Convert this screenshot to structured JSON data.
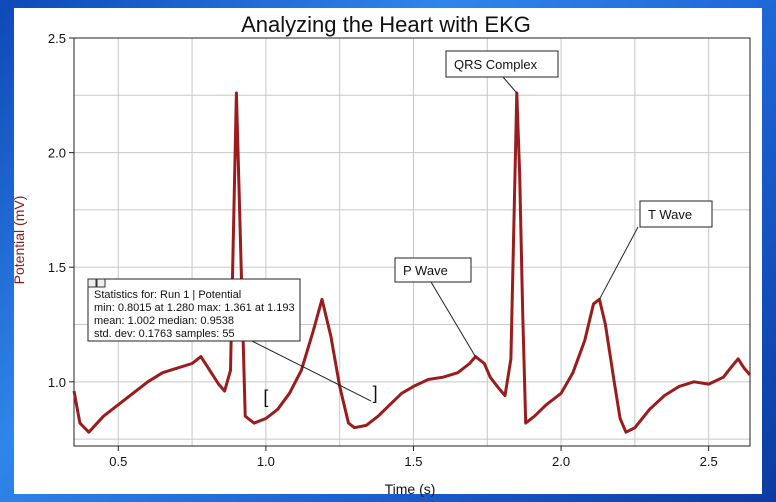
{
  "chart_data": {
    "type": "line",
    "title": "Analyzing the Heart with EKG",
    "xlabel": "Time (s)",
    "ylabel": "Potential (mV)",
    "xlim": [
      0.35,
      2.64
    ],
    "ylim": [
      0.72,
      2.5
    ],
    "x_ticks": [
      "0.5",
      "1.0",
      "1.5",
      "2.0",
      "2.5"
    ],
    "y_ticks": [
      "1.0",
      "1.5",
      "2.0",
      "2.5"
    ],
    "grid": true,
    "line_color": "#9b1c1c",
    "series": [
      {
        "points": [
          [
            0.35,
            0.96
          ],
          [
            0.37,
            0.82
          ],
          [
            0.4,
            0.78
          ],
          [
            0.45,
            0.85
          ],
          [
            0.5,
            0.9
          ],
          [
            0.55,
            0.95
          ],
          [
            0.6,
            1.0
          ],
          [
            0.65,
            1.04
          ],
          [
            0.7,
            1.06
          ],
          [
            0.75,
            1.08
          ],
          [
            0.78,
            1.11
          ],
          [
            0.81,
            1.05
          ],
          [
            0.84,
            0.99
          ],
          [
            0.86,
            0.96
          ],
          [
            0.88,
            1.05
          ],
          [
            0.9,
            2.26
          ],
          [
            0.91,
            1.8
          ],
          [
            0.93,
            0.85
          ],
          [
            0.96,
            0.82
          ],
          [
            1.0,
            0.84
          ],
          [
            1.04,
            0.88
          ],
          [
            1.08,
            0.95
          ],
          [
            1.12,
            1.05
          ],
          [
            1.16,
            1.22
          ],
          [
            1.19,
            1.36
          ],
          [
            1.22,
            1.2
          ],
          [
            1.25,
            0.98
          ],
          [
            1.28,
            0.82
          ],
          [
            1.3,
            0.8
          ],
          [
            1.34,
            0.81
          ],
          [
            1.38,
            0.85
          ],
          [
            1.42,
            0.9
          ],
          [
            1.46,
            0.95
          ],
          [
            1.5,
            0.98
          ],
          [
            1.55,
            1.01
          ],
          [
            1.6,
            1.02
          ],
          [
            1.65,
            1.04
          ],
          [
            1.69,
            1.08
          ],
          [
            1.71,
            1.11
          ],
          [
            1.74,
            1.08
          ],
          [
            1.76,
            1.02
          ],
          [
            1.79,
            0.97
          ],
          [
            1.81,
            0.94
          ],
          [
            1.83,
            1.1
          ],
          [
            1.85,
            2.26
          ],
          [
            1.86,
            1.9
          ],
          [
            1.87,
            1.3
          ],
          [
            1.88,
            0.82
          ],
          [
            1.91,
            0.85
          ],
          [
            1.95,
            0.9
          ],
          [
            2.0,
            0.95
          ],
          [
            2.04,
            1.04
          ],
          [
            2.08,
            1.18
          ],
          [
            2.11,
            1.34
          ],
          [
            2.13,
            1.36
          ],
          [
            2.15,
            1.25
          ],
          [
            2.18,
            1.0
          ],
          [
            2.2,
            0.84
          ],
          [
            2.22,
            0.78
          ],
          [
            2.25,
            0.8
          ],
          [
            2.3,
            0.88
          ],
          [
            2.35,
            0.94
          ],
          [
            2.4,
            0.98
          ],
          [
            2.45,
            1.0
          ],
          [
            2.5,
            0.99
          ],
          [
            2.55,
            1.02
          ],
          [
            2.58,
            1.07
          ],
          [
            2.6,
            1.1
          ],
          [
            2.62,
            1.06
          ],
          [
            2.64,
            1.03
          ]
        ]
      }
    ],
    "annotations": [
      {
        "text": "QRS Complex",
        "target": [
          1.85,
          2.26
        ]
      },
      {
        "text": "P Wave",
        "target": [
          1.71,
          1.11
        ]
      },
      {
        "text": "T Wave",
        "target": [
          2.13,
          1.36
        ]
      }
    ],
    "selection_brackets": {
      "start": "[",
      "end": "]",
      "x_start": 1.0,
      "x_end": 1.37,
      "y": 0.89
    },
    "statistics": {
      "lines": [
        "Statistics for: Run 1 | Potential",
        "min: 0.8015 at 1.280 max: 1.361 at 1.193",
        "mean: 1.002 median: 0.9538",
        "std. dev: 0.1763 samples: 55"
      ]
    }
  }
}
